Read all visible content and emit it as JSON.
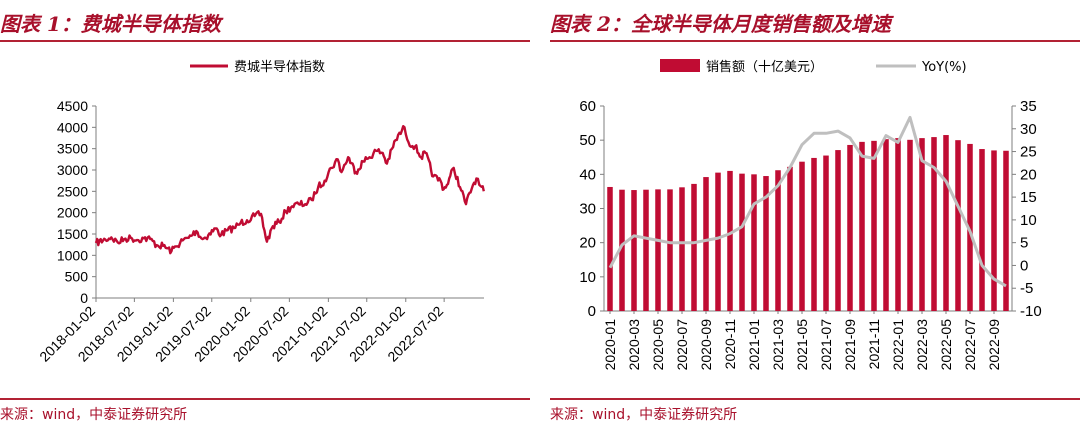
{
  "chart_data": [
    {
      "type": "line",
      "title": "图表 1：费城半导体指数",
      "source": "来源：wind，中泰证券研究所",
      "legend": [
        "费城半导体指数"
      ],
      "legend_position": "top-center",
      "xlabel": "",
      "ylabel": "",
      "ylim": [
        0,
        4500
      ],
      "yticks": [
        0,
        500,
        1000,
        1500,
        2000,
        2500,
        3000,
        3500,
        4000,
        4500
      ],
      "xtick_labels": [
        "2018-01-02",
        "2018-07-02",
        "2019-01-02",
        "2019-07-02",
        "2020-01-02",
        "2020-07-02",
        "2021-01-02",
        "2021-07-02",
        "2022-01-02",
        "2022-07-02"
      ],
      "series": [
        {
          "name": "费城半导体指数",
          "color": "#c00c33",
          "points": [
            [
              "2018-01-02",
              1290
            ],
            [
              "2018-02-15",
              1370
            ],
            [
              "2018-03-15",
              1420
            ],
            [
              "2018-04-15",
              1300
            ],
            [
              "2018-05-15",
              1380
            ],
            [
              "2018-06-15",
              1410
            ],
            [
              "2018-07-15",
              1360
            ],
            [
              "2018-08-15",
              1400
            ],
            [
              "2018-09-15",
              1380
            ],
            [
              "2018-10-15",
              1240
            ],
            [
              "2018-11-15",
              1220
            ],
            [
              "2018-12-24",
              1100
            ],
            [
              "2019-01-15",
              1210
            ],
            [
              "2019-02-15",
              1350
            ],
            [
              "2019-03-15",
              1410
            ],
            [
              "2019-04-20",
              1570
            ],
            [
              "2019-05-20",
              1380
            ],
            [
              "2019-06-15",
              1470
            ],
            [
              "2019-07-20",
              1630
            ],
            [
              "2019-08-15",
              1480
            ],
            [
              "2019-09-15",
              1590
            ],
            [
              "2019-10-15",
              1640
            ],
            [
              "2019-11-15",
              1760
            ],
            [
              "2019-12-15",
              1820
            ],
            [
              "2020-01-20",
              1920
            ],
            [
              "2020-02-19",
              1970
            ],
            [
              "2020-03-18",
              1320
            ],
            [
              "2020-04-15",
              1680
            ],
            [
              "2020-05-15",
              1780
            ],
            [
              "2020-06-15",
              2030
            ],
            [
              "2020-07-15",
              2150
            ],
            [
              "2020-08-15",
              2200
            ],
            [
              "2020-09-15",
              2200
            ],
            [
              "2020-10-15",
              2300
            ],
            [
              "2020-11-15",
              2600
            ],
            [
              "2020-12-15",
              2750
            ],
            [
              "2021-01-15",
              3050
            ],
            [
              "2021-02-15",
              3250
            ],
            [
              "2021-03-05",
              2950
            ],
            [
              "2021-04-05",
              3300
            ],
            [
              "2021-05-12",
              2950
            ],
            [
              "2021-06-15",
              3200
            ],
            [
              "2021-07-15",
              3300
            ],
            [
              "2021-08-15",
              3450
            ],
            [
              "2021-09-15",
              3400
            ],
            [
              "2021-10-05",
              3150
            ],
            [
              "2021-11-15",
              3700
            ],
            [
              "2021-12-27",
              4000
            ],
            [
              "2022-01-15",
              3650
            ],
            [
              "2022-02-15",
              3550
            ],
            [
              "2022-03-15",
              3300
            ],
            [
              "2022-04-05",
              3400
            ],
            [
              "2022-05-12",
              2850
            ],
            [
              "2022-06-15",
              2750
            ],
            [
              "2022-06-30",
              2550
            ],
            [
              "2022-07-15",
              2650
            ],
            [
              "2022-08-16",
              3050
            ],
            [
              "2022-09-15",
              2600
            ],
            [
              "2022-10-13",
              2200
            ],
            [
              "2022-11-15",
              2650
            ],
            [
              "2022-12-01",
              2800
            ],
            [
              "2022-12-15",
              2650
            ],
            [
              "2023-01-05",
              2500
            ]
          ]
        }
      ]
    },
    {
      "type": "bar",
      "title": "图表 2：全球半导体月度销售额及增速",
      "source": "来源：wind，中泰证券研究所",
      "legend": [
        "销售额（十亿美元）",
        "YoY(%)"
      ],
      "legend_position": "top-center",
      "categories": [
        "2020-01",
        "2020-02",
        "2020-03",
        "2020-04",
        "2020-05",
        "2020-06",
        "2020-07",
        "2020-08",
        "2020-09",
        "2020-10",
        "2020-11",
        "2020-12",
        "2021-01",
        "2021-02",
        "2021-03",
        "2021-04",
        "2021-05",
        "2021-06",
        "2021-07",
        "2021-08",
        "2021-09",
        "2021-10",
        "2021-11",
        "2021-12",
        "2022-01",
        "2022-02",
        "2022-03",
        "2022-04",
        "2022-05",
        "2022-06",
        "2022-07",
        "2022-08",
        "2022-09",
        "2022-10"
      ],
      "xtick_labels": [
        "2020-01",
        "2020-03",
        "2020-05",
        "2020-07",
        "2020-09",
        "2020-11",
        "2021-01",
        "2021-03",
        "2021-05",
        "2021-07",
        "2021-09",
        "2021-11",
        "2022-01",
        "2022-03",
        "2022-05",
        "2022-07",
        "2022-09"
      ],
      "ylim": [
        0,
        60
      ],
      "yticks": [
        0,
        10,
        20,
        30,
        40,
        50,
        60
      ],
      "y2lim": [
        -10,
        35
      ],
      "y2ticks": [
        -10,
        -5,
        0,
        5,
        10,
        15,
        20,
        25,
        30,
        35
      ],
      "series": [
        {
          "name": "销售额（十亿美元）",
          "type": "bar",
          "axis": "left",
          "color": "#c00c33",
          "values": [
            36.3,
            35.5,
            35.4,
            35.5,
            35.6,
            35.6,
            36.2,
            37.2,
            39.2,
            40.5,
            41.0,
            40.2,
            40.0,
            39.5,
            41.2,
            42.2,
            43.7,
            44.8,
            45.5,
            47.1,
            48.6,
            49.5,
            49.8,
            50.3,
            50.6,
            50.1,
            50.6,
            50.9,
            51.5,
            50.0,
            48.9,
            47.4,
            47.0,
            46.9
          ]
        },
        {
          "name": "YoY(%)",
          "type": "line",
          "axis": "right",
          "color": "#bfbfbf",
          "values": [
            -0.5,
            4.5,
            6.5,
            6.0,
            5.5,
            5.0,
            5.0,
            5.0,
            5.5,
            6.0,
            7.0,
            8.5,
            13.5,
            15.0,
            17.5,
            21.5,
            26.5,
            29.0,
            29.0,
            29.5,
            28.0,
            24.0,
            23.5,
            28.5,
            27.0,
            32.5,
            23.0,
            21.5,
            18.5,
            13.0,
            7.5,
            0.0,
            -3.0,
            -4.5
          ]
        }
      ]
    }
  ]
}
